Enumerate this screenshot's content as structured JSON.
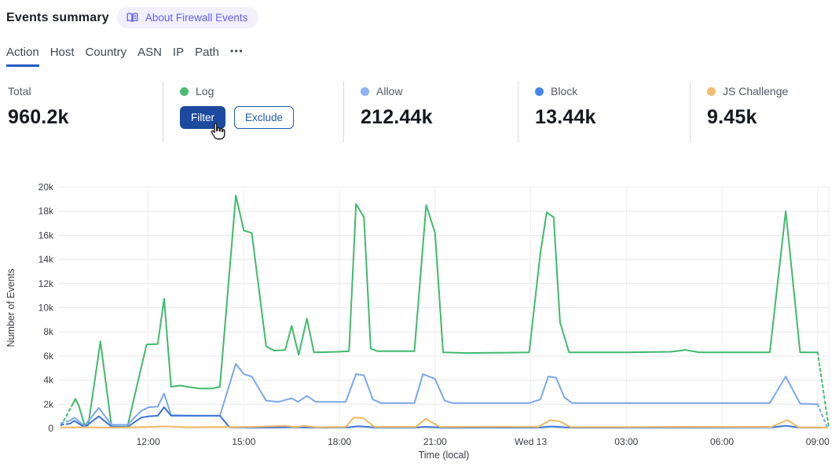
{
  "header": {
    "title": "Events summary",
    "about_badge": "About Firewall Events"
  },
  "tabs": {
    "items": [
      {
        "label": "Action",
        "active": true
      },
      {
        "label": "Host",
        "active": false
      },
      {
        "label": "Country",
        "active": false
      },
      {
        "label": "ASN",
        "active": false
      },
      {
        "label": "IP",
        "active": false
      },
      {
        "label": "Path",
        "active": false
      }
    ],
    "more_label": "•••"
  },
  "stats": {
    "total": {
      "label": "Total",
      "value": "960.2k"
    },
    "log": {
      "label": "Log",
      "dot_color": "#4cbd70",
      "filter_label": "Filter",
      "exclude_label": "Exclude"
    },
    "allow": {
      "label": "Allow",
      "value": "212.44k",
      "dot_color": "#8db3f2"
    },
    "block": {
      "label": "Block",
      "value": "13.44k",
      "dot_color": "#4187ee"
    },
    "js_challenge": {
      "label": "JS Challenge",
      "value": "9.45k",
      "dot_color": "#f2bd70"
    }
  },
  "chart_data": {
    "type": "line",
    "title": "",
    "xlabel": "Time (local)",
    "ylabel": "Number of Events",
    "y_unit": "thousands of events",
    "x_unit": "hours, 24 = Wed 13 00:00 local",
    "xlim": [
      9.2,
      33.35
    ],
    "ylim": [
      0,
      20
    ],
    "grid": true,
    "legend_position": "none (legend shown in stats row above)",
    "yticks": [
      0,
      2,
      4,
      6,
      8,
      10,
      12,
      14,
      16,
      18,
      20
    ],
    "ytick_labels": [
      "0",
      "2k",
      "4k",
      "6k",
      "8k",
      "10k",
      "12k",
      "14k",
      "16k",
      "18k",
      "20k"
    ],
    "xticks": [
      12,
      15,
      18,
      21,
      24,
      27,
      30,
      33
    ],
    "xtick_labels": [
      "12:00",
      "15:00",
      "18:00",
      "21:00",
      "Wed 13",
      "03:00",
      "06:00",
      "09:00"
    ],
    "series": [
      {
        "name": "Log",
        "color": "#3fba6c",
        "lead_dash": [
          [
            9.27,
            0.25
          ],
          [
            9.6,
            1.85
          ]
        ],
        "points": [
          [
            9.6,
            1.85
          ],
          [
            9.72,
            2.45
          ],
          [
            9.82,
            1.9
          ],
          [
            10.0,
            0.3
          ],
          [
            10.12,
            0.27
          ],
          [
            10.5,
            7.2
          ],
          [
            10.85,
            0.15
          ],
          [
            11.35,
            0.15
          ],
          [
            11.95,
            6.95
          ],
          [
            12.3,
            7.0
          ],
          [
            12.5,
            10.75
          ],
          [
            12.72,
            3.45
          ],
          [
            13.0,
            3.55
          ],
          [
            13.6,
            3.3
          ],
          [
            14.0,
            3.3
          ],
          [
            14.25,
            3.45
          ],
          [
            14.75,
            19.3
          ],
          [
            15.0,
            16.4
          ],
          [
            15.25,
            16.2
          ],
          [
            15.7,
            6.8
          ],
          [
            15.95,
            6.45
          ],
          [
            16.3,
            6.5
          ],
          [
            16.5,
            8.5
          ],
          [
            16.72,
            6.1
          ],
          [
            16.98,
            9.1
          ],
          [
            17.2,
            6.3
          ],
          [
            17.98,
            6.35
          ],
          [
            18.3,
            6.4
          ],
          [
            18.52,
            18.6
          ],
          [
            18.77,
            17.5
          ],
          [
            18.98,
            6.6
          ],
          [
            19.2,
            6.4
          ],
          [
            20.35,
            6.4
          ],
          [
            20.72,
            18.5
          ],
          [
            21.0,
            16.2
          ],
          [
            21.25,
            6.3
          ],
          [
            22.0,
            6.25
          ],
          [
            23.95,
            6.3
          ],
          [
            24.3,
            14.5
          ],
          [
            24.5,
            17.9
          ],
          [
            24.72,
            17.5
          ],
          [
            24.92,
            8.8
          ],
          [
            25.2,
            6.3
          ],
          [
            27.0,
            6.3
          ],
          [
            28.4,
            6.35
          ],
          [
            28.85,
            6.5
          ],
          [
            29.3,
            6.3
          ],
          [
            31.5,
            6.3
          ],
          [
            32.0,
            18.0
          ],
          [
            32.45,
            6.3
          ],
          [
            33.0,
            6.3
          ]
        ],
        "tail_dash": [
          [
            33.0,
            6.3
          ],
          [
            33.35,
            0.1
          ]
        ]
      },
      {
        "name": "Allow",
        "color": "#7aa7ec",
        "lead_dash": [
          [
            9.27,
            0.45
          ],
          [
            9.55,
            0.65
          ]
        ],
        "points": [
          [
            9.55,
            0.65
          ],
          [
            9.68,
            0.9
          ],
          [
            10.0,
            0.2
          ],
          [
            10.45,
            1.7
          ],
          [
            10.85,
            0.3
          ],
          [
            11.35,
            0.3
          ],
          [
            11.78,
            1.45
          ],
          [
            12.02,
            1.76
          ],
          [
            12.3,
            1.8
          ],
          [
            12.5,
            2.9
          ],
          [
            12.72,
            1.1
          ],
          [
            13.5,
            1.05
          ],
          [
            14.25,
            1.05
          ],
          [
            14.75,
            5.35
          ],
          [
            15.0,
            4.5
          ],
          [
            15.25,
            4.3
          ],
          [
            15.7,
            2.3
          ],
          [
            16.1,
            2.2
          ],
          [
            16.5,
            2.5
          ],
          [
            16.7,
            2.2
          ],
          [
            16.98,
            2.7
          ],
          [
            17.25,
            2.2
          ],
          [
            18.2,
            2.2
          ],
          [
            18.52,
            4.5
          ],
          [
            18.77,
            4.4
          ],
          [
            19.05,
            2.4
          ],
          [
            19.3,
            2.1
          ],
          [
            20.35,
            2.1
          ],
          [
            20.62,
            4.5
          ],
          [
            21.0,
            4.1
          ],
          [
            21.3,
            2.3
          ],
          [
            21.55,
            2.1
          ],
          [
            23.95,
            2.1
          ],
          [
            24.3,
            2.4
          ],
          [
            24.55,
            4.3
          ],
          [
            24.8,
            4.2
          ],
          [
            25.05,
            2.6
          ],
          [
            25.3,
            2.1
          ],
          [
            28.0,
            2.1
          ],
          [
            31.5,
            2.1
          ],
          [
            32.0,
            4.3
          ],
          [
            32.45,
            2.05
          ],
          [
            33.0,
            2.0
          ]
        ],
        "tail_dash": [
          [
            33.0,
            2.0
          ],
          [
            33.3,
            0.1
          ]
        ]
      },
      {
        "name": "Block",
        "color": "#3a73d9",
        "lead_dash": [
          [
            9.27,
            0.3
          ],
          [
            9.55,
            0.4
          ]
        ],
        "points": [
          [
            9.55,
            0.4
          ],
          [
            9.68,
            0.63
          ],
          [
            10.0,
            0.1
          ],
          [
            10.45,
            1.0
          ],
          [
            10.85,
            0.15
          ],
          [
            11.35,
            0.12
          ],
          [
            11.78,
            0.9
          ],
          [
            12.02,
            1.0
          ],
          [
            12.3,
            1.05
          ],
          [
            12.5,
            1.76
          ],
          [
            12.72,
            1.05
          ],
          [
            13.5,
            1.05
          ],
          [
            14.25,
            1.05
          ],
          [
            14.55,
            0.1
          ],
          [
            15.5,
            0.07
          ],
          [
            16.5,
            0.1
          ],
          [
            17.5,
            0.07
          ],
          [
            18.3,
            0.1
          ],
          [
            18.6,
            0.18
          ],
          [
            19.1,
            0.08
          ],
          [
            20.4,
            0.08
          ],
          [
            20.7,
            0.13
          ],
          [
            21.2,
            0.07
          ],
          [
            24.3,
            0.08
          ],
          [
            24.65,
            0.16
          ],
          [
            25.2,
            0.07
          ],
          [
            27.0,
            0.07
          ],
          [
            31.6,
            0.1
          ],
          [
            32.0,
            0.22
          ],
          [
            32.4,
            0.08
          ],
          [
            33.1,
            0.07
          ]
        ],
        "tail_dash": []
      },
      {
        "name": "JS Challenge",
        "color": "#f0b862",
        "lead_dash": [],
        "points": [
          [
            9.27,
            0.08
          ],
          [
            10.0,
            0.1
          ],
          [
            11.0,
            0.07
          ],
          [
            11.9,
            0.12
          ],
          [
            12.5,
            0.17
          ],
          [
            13.2,
            0.1
          ],
          [
            14.3,
            0.12
          ],
          [
            15.3,
            0.13
          ],
          [
            16.3,
            0.22
          ],
          [
            16.6,
            0.12
          ],
          [
            16.9,
            0.2
          ],
          [
            17.3,
            0.1
          ],
          [
            18.2,
            0.13
          ],
          [
            18.45,
            0.9
          ],
          [
            18.75,
            0.85
          ],
          [
            19.1,
            0.13
          ],
          [
            20.4,
            0.13
          ],
          [
            20.7,
            0.8
          ],
          [
            21.15,
            0.13
          ],
          [
            23.9,
            0.14
          ],
          [
            24.25,
            0.14
          ],
          [
            24.6,
            0.68
          ],
          [
            24.9,
            0.6
          ],
          [
            25.25,
            0.12
          ],
          [
            27.0,
            0.12
          ],
          [
            29.0,
            0.13
          ],
          [
            31.55,
            0.13
          ],
          [
            32.05,
            0.7
          ],
          [
            32.4,
            0.1
          ],
          [
            33.3,
            0.08
          ]
        ],
        "tail_dash": []
      }
    ]
  }
}
